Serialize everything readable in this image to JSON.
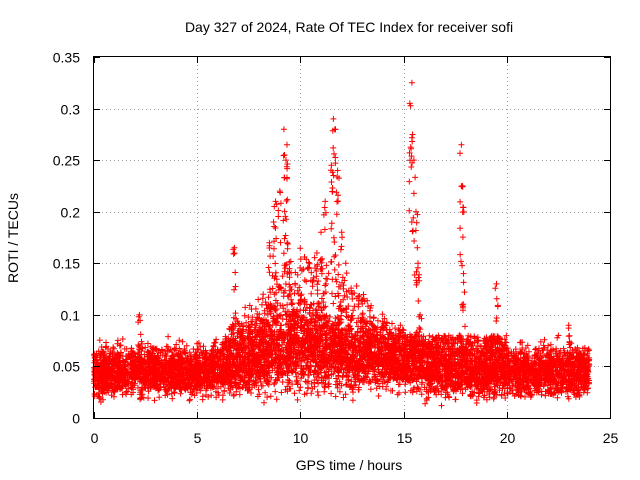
{
  "chart_data": {
    "type": "scatter",
    "title": "Day 327 of 2024, Rate Of TEC Index for receiver sofi",
    "xlabel": "GPS time / hours",
    "ylabel": "ROTI / TECUs",
    "xlim": [
      0,
      25
    ],
    "ylim": [
      0,
      0.35
    ],
    "xticks": [
      0,
      5,
      10,
      15,
      20,
      25
    ],
    "xtick_labels": [
      "0",
      "5",
      "10",
      "15",
      "20",
      "25"
    ],
    "yticks": [
      0,
      0.05,
      0.1,
      0.15,
      0.2,
      0.25,
      0.3,
      0.35
    ],
    "ytick_labels": [
      "0",
      "0.05",
      "0.1",
      "0.15",
      "0.2",
      "0.25",
      "0.3",
      "0.35"
    ],
    "grid": true,
    "marker": "+",
    "color": "#ff0000",
    "series": [
      {
        "name": "ROTI",
        "description": "dense band of points between about 0.01 and 0.10 TECU/s over 0–24 h, with spikes",
        "x": [
          0.1,
          0.3,
          0.6,
          0.9,
          1.2,
          1.5,
          1.9,
          2.3,
          2.2,
          2.6,
          3.0,
          3.4,
          3.8,
          4.2,
          4.6,
          5.0,
          5.4,
          5.8,
          6.2,
          6.6,
          6.8,
          7.0,
          7.2,
          7.5,
          7.8,
          8.2,
          8.5,
          8.7,
          8.8,
          9.0,
          9.2,
          9.3,
          9.35,
          9.5,
          9.8,
          10.2,
          10.5,
          10.8,
          11.0,
          11.2,
          11.5,
          11.6,
          11.7,
          11.8,
          12.0,
          12.2,
          12.5,
          13.0,
          13.5,
          14.0,
          14.5,
          15.0,
          15.3,
          15.4,
          15.5,
          15.6,
          15.7,
          15.8,
          16.2,
          16.6,
          17.0,
          17.5,
          17.8,
          17.85,
          17.9,
          18.3,
          18.8,
          19.3,
          19.5,
          20.0,
          20.5,
          21.0,
          21.5,
          22.0,
          22.5,
          23.0,
          23.5,
          23.9
        ],
        "y": [
          0.045,
          0.05,
          0.055,
          0.048,
          0.06,
          0.05,
          0.055,
          0.065,
          0.1,
          0.06,
          0.055,
          0.05,
          0.06,
          0.058,
          0.055,
          0.05,
          0.06,
          0.07,
          0.065,
          0.075,
          0.165,
          0.07,
          0.08,
          0.085,
          0.09,
          0.12,
          0.17,
          0.19,
          0.21,
          0.22,
          0.28,
          0.25,
          0.265,
          0.12,
          0.1,
          0.09,
          0.11,
          0.16,
          0.18,
          0.21,
          0.245,
          0.29,
          0.28,
          0.24,
          0.18,
          0.15,
          0.12,
          0.1,
          0.09,
          0.085,
          0.08,
          0.085,
          0.305,
          0.325,
          0.25,
          0.2,
          0.15,
          0.1,
          0.07,
          0.065,
          0.06,
          0.06,
          0.265,
          0.225,
          0.14,
          0.07,
          0.065,
          0.07,
          0.13,
          0.06,
          0.055,
          0.06,
          0.065,
          0.07,
          0.08,
          0.09,
          0.065,
          0.055
        ]
      }
    ]
  }
}
